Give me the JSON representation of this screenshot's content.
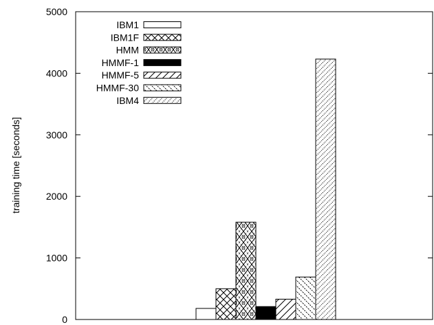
{
  "chart_data": {
    "type": "bar",
    "title": "",
    "xlabel": "",
    "ylabel": "training time [seconds]",
    "ylim": [
      0,
      5000
    ],
    "yticks": [
      0,
      1000,
      2000,
      3000,
      4000,
      5000
    ],
    "ytick_labels": [
      "0",
      "1000",
      "2000",
      "3000",
      "4000",
      "5000"
    ],
    "grid": false,
    "legend_position": "top-left",
    "series": [
      {
        "name": "IBM1",
        "value": 180,
        "pattern": "empty",
        "color": "#000000"
      },
      {
        "name": "IBM1F",
        "value": 500,
        "pattern": "crosshatch",
        "color": "#000000"
      },
      {
        "name": "HMM",
        "value": 1580,
        "pattern": "diamond",
        "color": "#000000"
      },
      {
        "name": "HMMF-1",
        "value": 210,
        "pattern": "solid",
        "color": "#000000"
      },
      {
        "name": "HMMF-5",
        "value": 330,
        "pattern": "diagonal-up",
        "color": "#000000"
      },
      {
        "name": "HMMF-30",
        "value": 690,
        "pattern": "diagonal-down",
        "color": "#000000"
      },
      {
        "name": "IBM4",
        "value": 4230,
        "pattern": "dotted-diagonal",
        "color": "#000000"
      }
    ]
  }
}
